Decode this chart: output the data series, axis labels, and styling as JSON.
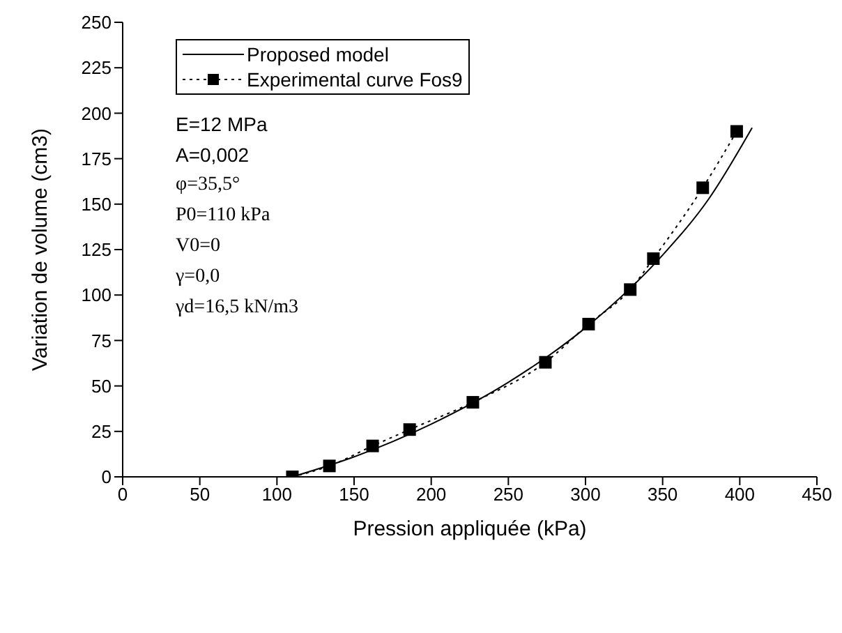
{
  "chart_data": {
    "type": "line",
    "xlabel": "Pression appliquée (kPa)",
    "ylabel": "Variation de volume (cm3)",
    "xlim": [
      0,
      450
    ],
    "xticks": [
      0,
      50,
      100,
      150,
      200,
      250,
      300,
      350,
      400,
      450
    ],
    "ylim": [
      0,
      250
    ],
    "yticks": [
      0,
      25,
      50,
      75,
      100,
      125,
      150,
      175,
      200,
      225,
      250
    ],
    "grid": false,
    "legend": "top left",
    "series": [
      {
        "name": "Proposed model",
        "color": "#000000",
        "marker": "none",
        "line_style": "solid",
        "x": [
          110,
          150,
          200,
          250,
          300,
          350,
          380,
          408
        ],
        "values": [
          0,
          11,
          29,
          52,
          82,
          122,
          153,
          192
        ]
      },
      {
        "name": "Experimental curve Fos9",
        "color": "#000000",
        "marker": "square",
        "line_style": "dotted",
        "x": [
          110,
          134,
          162,
          186,
          227,
          274,
          302,
          329,
          344,
          376,
          398
        ],
        "values": [
          0,
          6,
          17,
          26,
          41,
          63,
          84,
          103,
          120,
          159,
          190
        ]
      }
    ],
    "annotations": [
      "E=12 MPa",
      "A=0,002",
      "φ=35,5°",
      "P0=110 kPa",
      "V0=0",
      "γ=0,0",
      "γd=16,5 kN/m3"
    ]
  }
}
